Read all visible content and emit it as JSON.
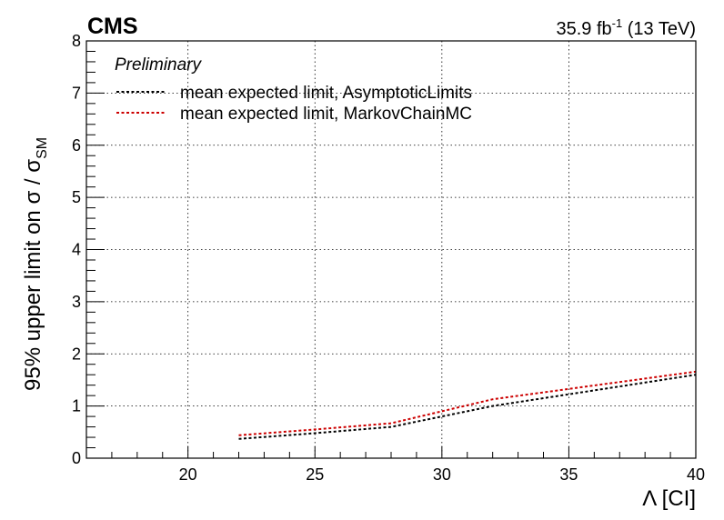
{
  "header": {
    "experiment": "CMS",
    "lumi_prefix": "35.9 fb",
    "lumi_sup": "-1",
    "lumi_suffix": " (13 TeV)",
    "status": "Preliminary"
  },
  "chart_data": {
    "type": "line",
    "xlabel": "Λ [CI]",
    "ylabel_main": "95% upper limit on σ / σ",
    "ylabel_sub": "SM",
    "xlim": [
      16,
      40
    ],
    "ylim": [
      0,
      8
    ],
    "x_ticks": [
      20,
      25,
      30,
      35,
      40
    ],
    "y_ticks": [
      0,
      1,
      2,
      3,
      4,
      5,
      6,
      7,
      8
    ],
    "grid": true,
    "legend_position": "top-left",
    "series": [
      {
        "name": "mean expected limit, AsymptoticLimits",
        "color": "#000000",
        "line_style": "dashed",
        "x": [
          22,
          25,
          28,
          32,
          40
        ],
        "y": [
          0.37,
          0.48,
          0.6,
          1.0,
          1.6
        ]
      },
      {
        "name": "mean expected limit, MarkovChainMC",
        "color": "#cc0000",
        "line_style": "dashed",
        "x": [
          22,
          25,
          28,
          32,
          40
        ],
        "y": [
          0.44,
          0.55,
          0.67,
          1.13,
          1.66
        ]
      }
    ]
  }
}
